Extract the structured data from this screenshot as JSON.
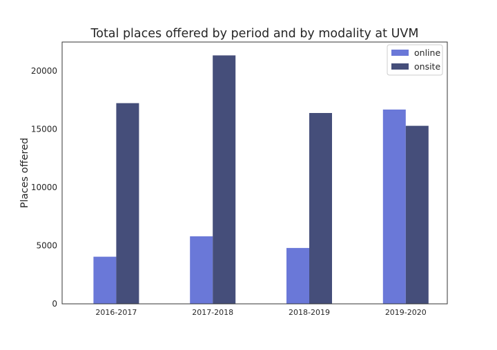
{
  "chart_data": {
    "type": "bar",
    "title": "Total places offered by period and by modality at UVM",
    "xlabel": "",
    "ylabel": "Places offered",
    "categories": [
      "2016-2017",
      "2017-2018",
      "2018-2019",
      "2019-2020"
    ],
    "series": [
      {
        "name": "online",
        "color": "#6a78d8",
        "values": [
          4050,
          5800,
          4800,
          16700
        ]
      },
      {
        "name": "onsite",
        "color": "#454e7a",
        "values": [
          17250,
          21350,
          16400,
          15300
        ]
      }
    ],
    "ylim": [
      0,
      22500
    ],
    "yticks": [
      0,
      5000,
      10000,
      15000,
      20000
    ],
    "grid": false,
    "legend_position": "top-right"
  }
}
